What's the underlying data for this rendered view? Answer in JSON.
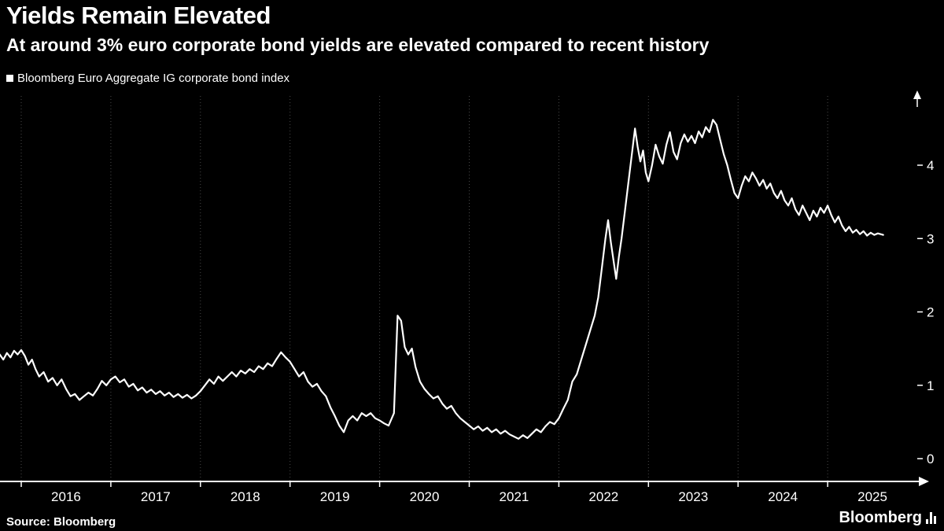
{
  "colors": {
    "background": "#000000",
    "line": "#ffffff",
    "grid": "#4a4a4a",
    "text": "#ffffff"
  },
  "footer": {
    "source": "Source: Bloomberg",
    "brand": "Bloomberg"
  },
  "chart_data": {
    "type": "line",
    "title": "Yields Remain Elevated",
    "subtitle": "At around 3% euro corporate bond yields are elevated compared to recent history",
    "xlabel": "",
    "ylabel": "",
    "grid": "vertical-dotted",
    "legend_position": "top-left",
    "x_domain": [
      2015.76,
      2026.0
    ],
    "y_domain": [
      -0.31,
      4.97
    ],
    "x_ticks": [
      2016,
      2017,
      2018,
      2019,
      2020,
      2021,
      2022,
      2023,
      2024,
      2025
    ],
    "y_ticks": [
      0,
      1,
      2,
      3,
      4
    ],
    "y_axis_side": "right",
    "series": [
      {
        "name": "Bloomberg Euro Aggregate IG corporate bond index",
        "color": "#ffffff",
        "points": [
          [
            2015.76,
            1.42
          ],
          [
            2015.8,
            1.35
          ],
          [
            2015.84,
            1.44
          ],
          [
            2015.88,
            1.38
          ],
          [
            2015.92,
            1.47
          ],
          [
            2015.96,
            1.42
          ],
          [
            2016.0,
            1.48
          ],
          [
            2016.04,
            1.4
          ],
          [
            2016.08,
            1.28
          ],
          [
            2016.12,
            1.35
          ],
          [
            2016.16,
            1.22
          ],
          [
            2016.2,
            1.12
          ],
          [
            2016.25,
            1.18
          ],
          [
            2016.3,
            1.05
          ],
          [
            2016.35,
            1.1
          ],
          [
            2016.4,
            1.0
          ],
          [
            2016.45,
            1.08
          ],
          [
            2016.5,
            0.95
          ],
          [
            2016.55,
            0.85
          ],
          [
            2016.6,
            0.88
          ],
          [
            2016.65,
            0.8
          ],
          [
            2016.7,
            0.85
          ],
          [
            2016.75,
            0.9
          ],
          [
            2016.8,
            0.86
          ],
          [
            2016.85,
            0.95
          ],
          [
            2016.9,
            1.06
          ],
          [
            2016.95,
            1.0
          ],
          [
            2017.0,
            1.08
          ],
          [
            2017.05,
            1.12
          ],
          [
            2017.1,
            1.04
          ],
          [
            2017.15,
            1.08
          ],
          [
            2017.2,
            0.98
          ],
          [
            2017.25,
            1.02
          ],
          [
            2017.3,
            0.93
          ],
          [
            2017.35,
            0.97
          ],
          [
            2017.4,
            0.9
          ],
          [
            2017.45,
            0.94
          ],
          [
            2017.5,
            0.88
          ],
          [
            2017.55,
            0.92
          ],
          [
            2017.6,
            0.86
          ],
          [
            2017.65,
            0.9
          ],
          [
            2017.7,
            0.84
          ],
          [
            2017.75,
            0.88
          ],
          [
            2017.8,
            0.83
          ],
          [
            2017.85,
            0.87
          ],
          [
            2017.9,
            0.82
          ],
          [
            2017.95,
            0.86
          ],
          [
            2018.0,
            0.92
          ],
          [
            2018.05,
            1.0
          ],
          [
            2018.1,
            1.08
          ],
          [
            2018.15,
            1.02
          ],
          [
            2018.2,
            1.12
          ],
          [
            2018.25,
            1.06
          ],
          [
            2018.3,
            1.12
          ],
          [
            2018.35,
            1.18
          ],
          [
            2018.4,
            1.12
          ],
          [
            2018.45,
            1.2
          ],
          [
            2018.5,
            1.16
          ],
          [
            2018.55,
            1.22
          ],
          [
            2018.6,
            1.18
          ],
          [
            2018.65,
            1.26
          ],
          [
            2018.7,
            1.22
          ],
          [
            2018.75,
            1.3
          ],
          [
            2018.8,
            1.26
          ],
          [
            2018.85,
            1.36
          ],
          [
            2018.9,
            1.45
          ],
          [
            2018.95,
            1.38
          ],
          [
            2019.0,
            1.32
          ],
          [
            2019.05,
            1.22
          ],
          [
            2019.1,
            1.12
          ],
          [
            2019.15,
            1.18
          ],
          [
            2019.2,
            1.05
          ],
          [
            2019.25,
            0.98
          ],
          [
            2019.3,
            1.02
          ],
          [
            2019.35,
            0.92
          ],
          [
            2019.4,
            0.85
          ],
          [
            2019.45,
            0.7
          ],
          [
            2019.5,
            0.58
          ],
          [
            2019.55,
            0.45
          ],
          [
            2019.6,
            0.36
          ],
          [
            2019.65,
            0.52
          ],
          [
            2019.7,
            0.58
          ],
          [
            2019.75,
            0.52
          ],
          [
            2019.8,
            0.62
          ],
          [
            2019.85,
            0.58
          ],
          [
            2019.9,
            0.62
          ],
          [
            2019.95,
            0.55
          ],
          [
            2020.0,
            0.52
          ],
          [
            2020.05,
            0.48
          ],
          [
            2020.1,
            0.45
          ],
          [
            2020.16,
            0.62
          ],
          [
            2020.2,
            1.95
          ],
          [
            2020.24,
            1.88
          ],
          [
            2020.28,
            1.52
          ],
          [
            2020.32,
            1.42
          ],
          [
            2020.36,
            1.5
          ],
          [
            2020.4,
            1.25
          ],
          [
            2020.45,
            1.05
          ],
          [
            2020.5,
            0.95
          ],
          [
            2020.55,
            0.88
          ],
          [
            2020.6,
            0.82
          ],
          [
            2020.65,
            0.85
          ],
          [
            2020.7,
            0.75
          ],
          [
            2020.75,
            0.68
          ],
          [
            2020.8,
            0.72
          ],
          [
            2020.85,
            0.62
          ],
          [
            2020.9,
            0.55
          ],
          [
            2020.95,
            0.5
          ],
          [
            2021.0,
            0.45
          ],
          [
            2021.05,
            0.4
          ],
          [
            2021.1,
            0.44
          ],
          [
            2021.15,
            0.38
          ],
          [
            2021.2,
            0.42
          ],
          [
            2021.25,
            0.36
          ],
          [
            2021.3,
            0.4
          ],
          [
            2021.35,
            0.34
          ],
          [
            2021.4,
            0.38
          ],
          [
            2021.45,
            0.33
          ],
          [
            2021.5,
            0.3
          ],
          [
            2021.55,
            0.27
          ],
          [
            2021.6,
            0.32
          ],
          [
            2021.65,
            0.28
          ],
          [
            2021.7,
            0.34
          ],
          [
            2021.75,
            0.4
          ],
          [
            2021.8,
            0.36
          ],
          [
            2021.85,
            0.44
          ],
          [
            2021.9,
            0.5
          ],
          [
            2021.95,
            0.47
          ],
          [
            2022.0,
            0.55
          ],
          [
            2022.05,
            0.68
          ],
          [
            2022.1,
            0.8
          ],
          [
            2022.15,
            1.05
          ],
          [
            2022.2,
            1.15
          ],
          [
            2022.25,
            1.35
          ],
          [
            2022.3,
            1.55
          ],
          [
            2022.35,
            1.75
          ],
          [
            2022.4,
            1.95
          ],
          [
            2022.44,
            2.2
          ],
          [
            2022.48,
            2.6
          ],
          [
            2022.52,
            3.0
          ],
          [
            2022.55,
            3.25
          ],
          [
            2022.58,
            2.95
          ],
          [
            2022.61,
            2.7
          ],
          [
            2022.64,
            2.45
          ],
          [
            2022.67,
            2.75
          ],
          [
            2022.7,
            3.0
          ],
          [
            2022.74,
            3.4
          ],
          [
            2022.78,
            3.8
          ],
          [
            2022.82,
            4.2
          ],
          [
            2022.85,
            4.5
          ],
          [
            2022.88,
            4.25
          ],
          [
            2022.91,
            4.05
          ],
          [
            2022.94,
            4.2
          ],
          [
            2022.97,
            3.9
          ],
          [
            2023.0,
            3.78
          ],
          [
            2023.04,
            4.0
          ],
          [
            2023.08,
            4.28
          ],
          [
            2023.12,
            4.12
          ],
          [
            2023.16,
            4.02
          ],
          [
            2023.2,
            4.28
          ],
          [
            2023.24,
            4.45
          ],
          [
            2023.28,
            4.18
          ],
          [
            2023.32,
            4.08
          ],
          [
            2023.36,
            4.3
          ],
          [
            2023.4,
            4.42
          ],
          [
            2023.44,
            4.32
          ],
          [
            2023.48,
            4.4
          ],
          [
            2023.52,
            4.3
          ],
          [
            2023.56,
            4.46
          ],
          [
            2023.6,
            4.38
          ],
          [
            2023.64,
            4.52
          ],
          [
            2023.68,
            4.45
          ],
          [
            2023.72,
            4.62
          ],
          [
            2023.76,
            4.55
          ],
          [
            2023.8,
            4.35
          ],
          [
            2023.84,
            4.15
          ],
          [
            2023.88,
            4.0
          ],
          [
            2023.92,
            3.8
          ],
          [
            2023.96,
            3.62
          ],
          [
            2024.0,
            3.55
          ],
          [
            2024.04,
            3.72
          ],
          [
            2024.08,
            3.85
          ],
          [
            2024.12,
            3.78
          ],
          [
            2024.16,
            3.9
          ],
          [
            2024.2,
            3.82
          ],
          [
            2024.24,
            3.72
          ],
          [
            2024.28,
            3.8
          ],
          [
            2024.32,
            3.68
          ],
          [
            2024.36,
            3.75
          ],
          [
            2024.4,
            3.62
          ],
          [
            2024.44,
            3.55
          ],
          [
            2024.48,
            3.65
          ],
          [
            2024.52,
            3.52
          ],
          [
            2024.56,
            3.45
          ],
          [
            2024.6,
            3.55
          ],
          [
            2024.64,
            3.4
          ],
          [
            2024.68,
            3.32
          ],
          [
            2024.72,
            3.45
          ],
          [
            2024.76,
            3.35
          ],
          [
            2024.8,
            3.25
          ],
          [
            2024.84,
            3.38
          ],
          [
            2024.88,
            3.3
          ],
          [
            2024.92,
            3.42
          ],
          [
            2024.96,
            3.35
          ],
          [
            2025.0,
            3.45
          ],
          [
            2025.04,
            3.32
          ],
          [
            2025.08,
            3.22
          ],
          [
            2025.12,
            3.3
          ],
          [
            2025.16,
            3.18
          ],
          [
            2025.2,
            3.1
          ],
          [
            2025.24,
            3.16
          ],
          [
            2025.28,
            3.08
          ],
          [
            2025.32,
            3.12
          ],
          [
            2025.36,
            3.06
          ],
          [
            2025.4,
            3.1
          ],
          [
            2025.44,
            3.04
          ],
          [
            2025.48,
            3.08
          ],
          [
            2025.52,
            3.05
          ],
          [
            2025.56,
            3.07
          ],
          [
            2025.62,
            3.05
          ]
        ]
      }
    ]
  }
}
